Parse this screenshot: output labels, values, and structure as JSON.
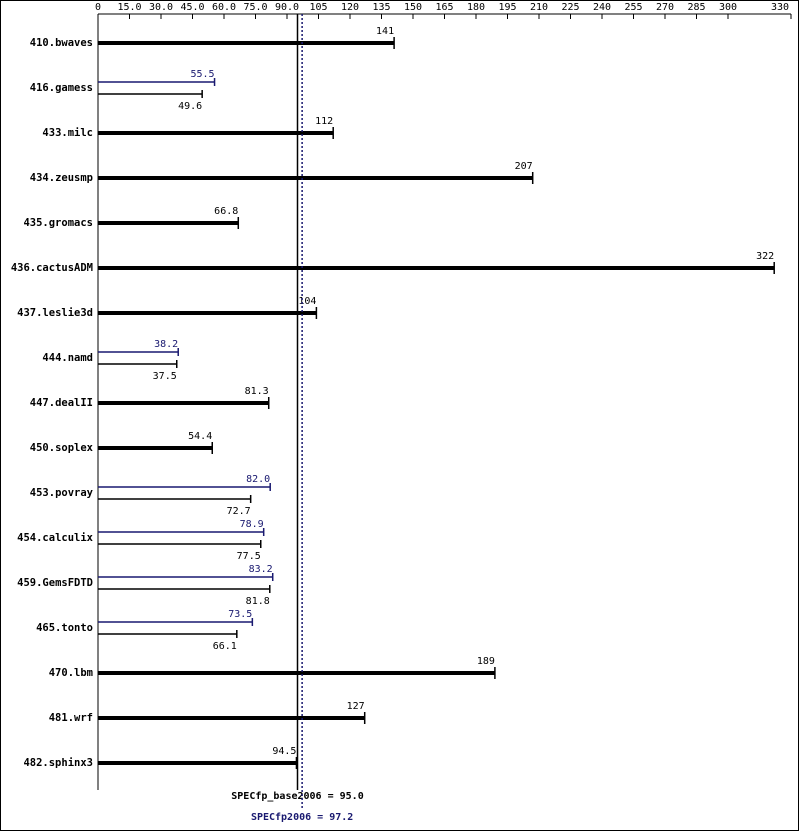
{
  "chart_data": {
    "type": "bar",
    "categories": [
      "410.bwaves",
      "416.gamess",
      "433.milc",
      "434.zeusmp",
      "435.gromacs",
      "436.cactusADM",
      "437.leslie3d",
      "444.namd",
      "447.dealII",
      "450.soplex",
      "453.povray",
      "454.calculix",
      "459.GemsFDTD",
      "465.tonto",
      "470.lbm",
      "481.wrf",
      "482.sphinx3"
    ],
    "series": [
      {
        "color": "#000000",
        "values": [
          141,
          49.6,
          112,
          207,
          66.8,
          322,
          104,
          37.5,
          81.3,
          54.4,
          72.7,
          77.5,
          81.8,
          66.1,
          189,
          127,
          94.5
        ],
        "value_labels": [
          "141",
          "49.6",
          "112",
          "207",
          "66.8",
          "322",
          "104",
          "37.5",
          "81.3",
          "54.4",
          "72.7",
          "77.5",
          "81.8",
          "66.1",
          "189",
          "127",
          "94.5"
        ]
      },
      {
        "color": "#191970",
        "values": [
          null,
          55.5,
          null,
          null,
          null,
          null,
          null,
          38.2,
          null,
          null,
          82.0,
          78.9,
          83.2,
          73.5,
          null,
          null,
          null
        ],
        "value_labels": [
          null,
          "55.5",
          null,
          null,
          null,
          null,
          null,
          "38.2",
          null,
          null,
          "82.0",
          "78.9",
          "83.2",
          "73.5",
          null,
          null,
          null
        ]
      }
    ],
    "xlim": [
      0,
      330
    ],
    "xticks": [
      0,
      {
        "value": 15,
        "label": "15.0"
      },
      {
        "value": 30,
        "label": "30.0"
      },
      {
        "value": 45,
        "label": "45.0"
      },
      {
        "value": 60,
        "label": "60.0"
      },
      {
        "value": 75,
        "label": "75.0"
      },
      {
        "value": 90,
        "label": "90.0"
      },
      105,
      120,
      135,
      150,
      165,
      180,
      195,
      210,
      225,
      240,
      255,
      270,
      285,
      300,
      330
    ],
    "reference_lines": [
      {
        "label": "SPECfp_base2006 = 95.0",
        "value": 95.0,
        "color": "#000000",
        "dotted": false
      },
      {
        "label": "SPECfp2006 = 97.2",
        "value": 97.2,
        "color": "#191970",
        "dotted": true
      }
    ]
  }
}
